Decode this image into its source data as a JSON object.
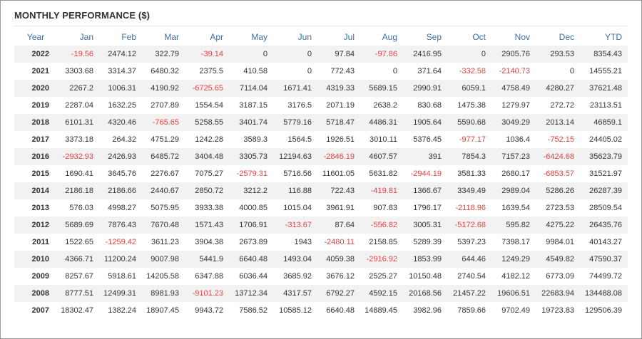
{
  "title": "MONTHLY PERFORMANCE ($)",
  "columns": [
    "Year",
    "Jan",
    "Feb",
    "Mar",
    "Apr",
    "May",
    "Jun",
    "Jul",
    "Aug",
    "Sep",
    "Oct",
    "Nov",
    "Dec",
    "YTD"
  ],
  "colors": {
    "header": "#3d6fa6",
    "negative": "#e24545",
    "text": "#333333",
    "stripe": "#f2f2f2"
  },
  "rows": [
    [
      "2022",
      "-19.56",
      "2474.12",
      "322.79",
      "-39.14",
      "0",
      "0",
      "97.84",
      "-97.86",
      "2416.95",
      "0",
      "2905.76",
      "293.53",
      "8354.43"
    ],
    [
      "2021",
      "3303.68",
      "3314.37",
      "6480.32",
      "2375.5",
      "410.58",
      "0",
      "772.43",
      "0",
      "371.64",
      "-332.58",
      "-2140.73",
      "0",
      "14555.21"
    ],
    [
      "2020",
      "2267.2",
      "1006.31",
      "4190.92",
      "-6725.65",
      "7114.04",
      "1671.41",
      "4319.33",
      "5689.15",
      "2990.91",
      "6059.1",
      "4758.49",
      "4280.27",
      "37621.48"
    ],
    [
      "2019",
      "2287.04",
      "1632.25",
      "2707.89",
      "1554.54",
      "3187.15",
      "3176.5",
      "2071.19",
      "2638.2",
      "830.68",
      "1475.38",
      "1279.97",
      "272.72",
      "23113.51"
    ],
    [
      "2018",
      "6101.31",
      "4320.46",
      "-765.65",
      "5258.55",
      "3401.74",
      "5779.16",
      "5718.47",
      "4486.31",
      "1905.64",
      "5590.68",
      "3049.29",
      "2013.14",
      "46859.1"
    ],
    [
      "2017",
      "3373.18",
      "264.32",
      "4751.29",
      "1242.28",
      "3589.3",
      "1564.5",
      "1926.51",
      "3010.11",
      "5376.45",
      "-977.17",
      "1036.4",
      "-752.15",
      "24405.02"
    ],
    [
      "2016",
      "-2932.93",
      "2426.93",
      "6485.72",
      "3404.48",
      "3305.73",
      "12194.63",
      "-2846.19",
      "4607.57",
      "391",
      "7854.3",
      "7157.23",
      "-6424.68",
      "35623.79"
    ],
    [
      "2015",
      "1690.41",
      "3645.76",
      "2276.67",
      "7075.27",
      "-2579.31",
      "5716.56",
      "11601.05",
      "5631.82",
      "-2944.19",
      "3581.33",
      "2680.17",
      "-6853.57",
      "31521.97"
    ],
    [
      "2014",
      "2186.18",
      "2186.66",
      "2440.67",
      "2850.72",
      "3212.2",
      "116.88",
      "722.43",
      "-419.81",
      "1366.67",
      "3349.49",
      "2989.04",
      "5286.26",
      "26287.39"
    ],
    [
      "2013",
      "576.03",
      "4998.27",
      "5075.95",
      "3933.38",
      "4000.85",
      "1015.04",
      "3961.91",
      "907.83",
      "1796.17",
      "-2118.96",
      "1639.54",
      "2723.53",
      "28509.54"
    ],
    [
      "2012",
      "5689.69",
      "7876.43",
      "7670.48",
      "1571.43",
      "1706.91",
      "-313.67",
      "87.64",
      "-556.82",
      "3005.31",
      "-5172.68",
      "595.82",
      "4275.22",
      "26435.76"
    ],
    [
      "2011",
      "1522.65",
      "-1259.42",
      "3611.23",
      "3904.38",
      "2673.89",
      "1943",
      "-2480.11",
      "2158.85",
      "5289.39",
      "5397.23",
      "7398.17",
      "9984.01",
      "40143.27"
    ],
    [
      "2010",
      "4366.71",
      "11200.24",
      "9007.98",
      "5441.9",
      "6640.48",
      "1493.04",
      "4059.38",
      "-2916.92",
      "1853.99",
      "644.46",
      "1249.29",
      "4549.82",
      "47590.37"
    ],
    [
      "2009",
      "8257.67",
      "5918.61",
      "14205.58",
      "6347.88",
      "6036.44",
      "3685.92",
      "3676.12",
      "2525.27",
      "10150.48",
      "2740.54",
      "4182.12",
      "6773.09",
      "74499.72"
    ],
    [
      "2008",
      "8777.51",
      "12499.31",
      "8981.93",
      "-9101.23",
      "13712.34",
      "4317.57",
      "6792.27",
      "4592.15",
      "20168.56",
      "21457.22",
      "19606.51",
      "22683.94",
      "134488.08"
    ],
    [
      "2007",
      "18302.47",
      "1382.24",
      "18907.45",
      "9943.72",
      "7586.52",
      "10585.12",
      "6640.48",
      "14889.45",
      "3982.96",
      "7859.66",
      "9702.49",
      "19723.83",
      "129506.39"
    ]
  ]
}
